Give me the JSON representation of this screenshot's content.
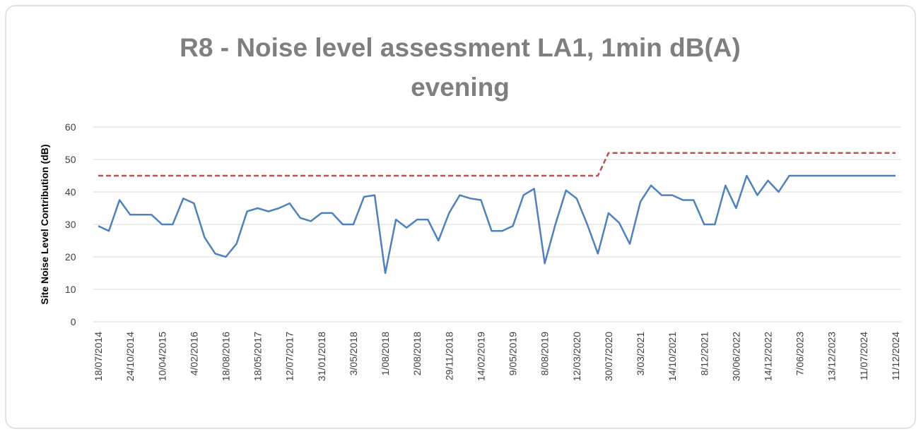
{
  "chart_data": {
    "type": "line",
    "title": "R8 - Noise level assessment LA1, 1min dB(A) evening",
    "y_label": "Site Noise Level Contribution (dB)",
    "categories": [
      "18/07/2014",
      null,
      null,
      "24/10/2014",
      null,
      null,
      "10/04/2015",
      null,
      null,
      "4/02/2016",
      null,
      null,
      "18/08/2016",
      null,
      null,
      "18/05/2017",
      null,
      null,
      "12/07/2017",
      null,
      null,
      "31/01/2018",
      null,
      null,
      "3/05/2018",
      null,
      null,
      "1/08/2018",
      null,
      null,
      "2/08/2018",
      null,
      null,
      "29/11/2018",
      null,
      null,
      "14/02/2019",
      null,
      null,
      "9/05/2019",
      null,
      null,
      "8/08/2019",
      null,
      null,
      "12/03/2020",
      null,
      null,
      "30/07/2020",
      null,
      null,
      "3/03/2021",
      null,
      null,
      "14/10/2021",
      null,
      null,
      "8/12/2021",
      null,
      null,
      "30/06/2022",
      null,
      null,
      "14/12/2022",
      null,
      null,
      "7/06/2023",
      null,
      null,
      "13/12/2023",
      null,
      null,
      "11/07/2024",
      null,
      null,
      "11/12/2024"
    ],
    "series": [
      {
        "color": "#4f81bd",
        "dashed": false,
        "values": [
          29.5,
          28,
          37.5,
          33,
          33,
          33,
          30,
          30,
          38,
          36.5,
          26,
          21,
          20,
          24,
          34,
          35,
          34,
          35,
          36.5,
          32,
          31,
          33.5,
          33.5,
          30,
          30,
          38.5,
          39,
          15,
          31.5,
          29,
          31.5,
          31.5,
          25,
          33.5,
          39,
          38,
          37.5,
          28,
          28,
          29.5,
          39,
          41,
          18,
          30,
          40.5,
          38,
          30,
          21,
          33.5,
          30.5,
          24,
          37,
          42,
          39,
          39,
          37.5,
          37.5,
          30,
          30,
          42,
          35,
          45,
          39,
          43.5,
          40,
          45,
          45,
          45,
          45,
          45,
          45,
          45,
          45,
          45,
          45,
          45
        ]
      },
      {
        "color": "#c0504d",
        "dashed": true,
        "values": [
          45,
          45,
          45,
          45,
          45,
          45,
          45,
          45,
          45,
          45,
          45,
          45,
          45,
          45,
          45,
          45,
          45,
          45,
          45,
          45,
          45,
          45,
          45,
          45,
          45,
          45,
          45,
          45,
          45,
          45,
          45,
          45,
          45,
          45,
          45,
          45,
          45,
          45,
          45,
          45,
          45,
          45,
          45,
          45,
          45,
          45,
          45,
          45,
          52,
          52,
          52,
          52,
          52,
          52,
          52,
          52,
          52,
          52,
          52,
          52,
          52,
          52,
          52,
          52,
          52,
          52,
          52,
          52,
          52,
          52,
          52,
          52,
          52,
          52,
          52,
          52
        ]
      }
    ],
    "ylim": [
      0,
      60
    ],
    "yticks": [
      0,
      10,
      20,
      30,
      40,
      50,
      60
    ],
    "grid": true
  }
}
